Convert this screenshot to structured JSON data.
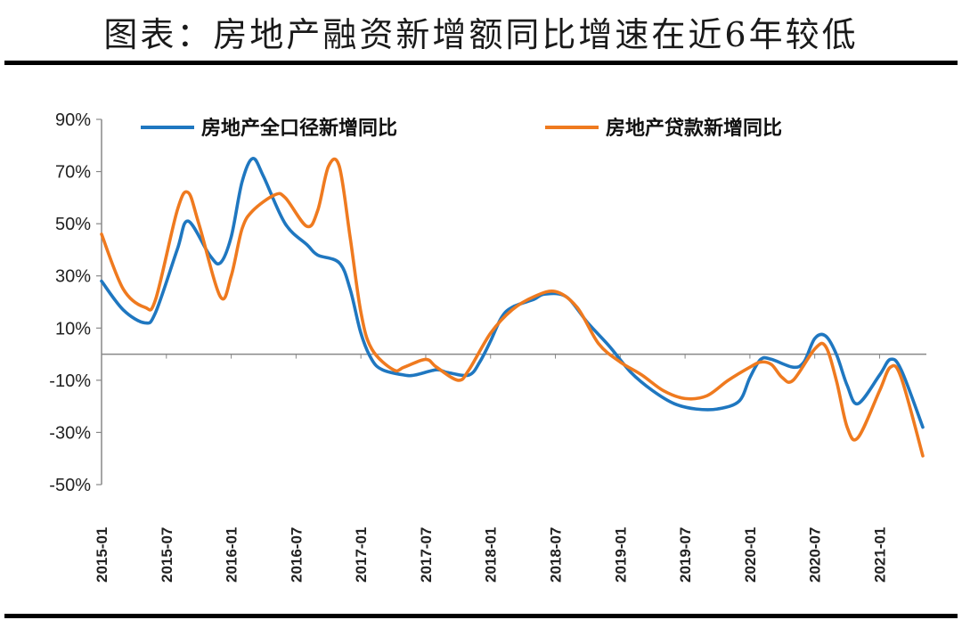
{
  "header": {
    "title": "图表：房地产融资新增额同比增速在近6年较低"
  },
  "chart_data": {
    "type": "line",
    "title": "图表：房地产融资新增额同比增速在近6年较低",
    "xlabel": "",
    "ylabel": "",
    "ylim": [
      -50,
      90
    ],
    "y_ticks": [
      "90%",
      "70%",
      "50%",
      "30%",
      "10%",
      "-10%",
      "-30%",
      "-50%"
    ],
    "y_tick_values": [
      90,
      70,
      50,
      30,
      10,
      -10,
      -30,
      -50
    ],
    "x_ticks": [
      "2015-01",
      "2015-07",
      "2016-01",
      "2016-07",
      "2017-01",
      "2017-07",
      "2018-01",
      "2018-07",
      "2019-01",
      "2019-07",
      "2020-01",
      "2020-07",
      "2021-01"
    ],
    "legend_position": "top",
    "grid": false,
    "series": [
      {
        "name": "房地产全口径新增同比",
        "color": "#1f77c0",
        "points": [
          [
            "2015-01",
            28
          ],
          [
            "2015-03",
            17
          ],
          [
            "2015-05",
            12
          ],
          [
            "2015-06",
            16
          ],
          [
            "2015-08",
            40
          ],
          [
            "2015-09",
            51
          ],
          [
            "2015-11",
            38
          ],
          [
            "2015-12",
            35
          ],
          [
            "2016-01",
            45
          ],
          [
            "2016-02",
            66
          ],
          [
            "2016-03",
            75
          ],
          [
            "2016-04",
            68
          ],
          [
            "2016-06",
            50
          ],
          [
            "2016-08",
            42
          ],
          [
            "2016-09",
            38
          ],
          [
            "2016-11",
            35
          ],
          [
            "2016-12",
            25
          ],
          [
            "2017-01",
            8
          ],
          [
            "2017-02",
            -2
          ],
          [
            "2017-03",
            -6
          ],
          [
            "2017-05",
            -8
          ],
          [
            "2017-06",
            -8
          ],
          [
            "2017-08",
            -6
          ],
          [
            "2017-09",
            -7
          ],
          [
            "2017-11",
            -8
          ],
          [
            "2017-12",
            -3
          ],
          [
            "2018-01",
            5
          ],
          [
            "2018-02",
            14
          ],
          [
            "2018-03",
            18
          ],
          [
            "2018-05",
            21
          ],
          [
            "2018-06",
            23
          ],
          [
            "2018-08",
            22
          ],
          [
            "2018-10",
            12
          ],
          [
            "2018-12",
            3
          ],
          [
            "2019-02",
            -7
          ],
          [
            "2019-04",
            -14
          ],
          [
            "2019-06",
            -19
          ],
          [
            "2019-08",
            -21
          ],
          [
            "2019-10",
            -21
          ],
          [
            "2019-12",
            -18
          ],
          [
            "2020-01",
            -9
          ],
          [
            "2020-02",
            -2
          ],
          [
            "2020-03",
            -2
          ],
          [
            "2020-05",
            -5
          ],
          [
            "2020-06",
            -3
          ],
          [
            "2020-07",
            6
          ],
          [
            "2020-08",
            7
          ],
          [
            "2020-09",
            0
          ],
          [
            "2020-10",
            -12
          ],
          [
            "2020-11",
            -19
          ],
          [
            "2021-01",
            -8
          ],
          [
            "2021-02",
            -2
          ],
          [
            "2021-03",
            -6
          ],
          [
            "2021-05",
            -28
          ]
        ]
      },
      {
        "name": "房地产贷款新增同比",
        "color": "#ef7a1f",
        "points": [
          [
            "2015-01",
            46
          ],
          [
            "2015-03",
            25
          ],
          [
            "2015-05",
            18
          ],
          [
            "2015-06",
            21
          ],
          [
            "2015-08",
            55
          ],
          [
            "2015-09",
            62
          ],
          [
            "2015-10",
            50
          ],
          [
            "2015-12",
            22
          ],
          [
            "2016-01",
            30
          ],
          [
            "2016-02",
            48
          ],
          [
            "2016-03",
            55
          ],
          [
            "2016-05",
            61
          ],
          [
            "2016-06",
            60
          ],
          [
            "2016-08",
            49
          ],
          [
            "2016-09",
            55
          ],
          [
            "2016-10",
            72
          ],
          [
            "2016-11",
            72
          ],
          [
            "2016-12",
            45
          ],
          [
            "2017-01",
            16
          ],
          [
            "2017-02",
            2
          ],
          [
            "2017-04",
            -6
          ],
          [
            "2017-05",
            -5
          ],
          [
            "2017-07",
            -2
          ],
          [
            "2017-08",
            -5
          ],
          [
            "2017-10",
            -10
          ],
          [
            "2017-11",
            -6
          ],
          [
            "2018-01",
            8
          ],
          [
            "2018-03",
            17
          ],
          [
            "2018-05",
            22
          ],
          [
            "2018-07",
            24
          ],
          [
            "2018-09",
            18
          ],
          [
            "2018-11",
            4
          ],
          [
            "2019-01",
            -3
          ],
          [
            "2019-03",
            -8
          ],
          [
            "2019-05",
            -14
          ],
          [
            "2019-07",
            -17
          ],
          [
            "2019-09",
            -16
          ],
          [
            "2019-11",
            -10
          ],
          [
            "2020-01",
            -5
          ],
          [
            "2020-02",
            -3
          ],
          [
            "2020-03",
            -4
          ],
          [
            "2020-04",
            -9
          ],
          [
            "2020-05",
            -10
          ],
          [
            "2020-07",
            2
          ],
          [
            "2020-08",
            3
          ],
          [
            "2020-09",
            -10
          ],
          [
            "2020-10",
            -28
          ],
          [
            "2020-11",
            -32
          ],
          [
            "2021-01",
            -14
          ],
          [
            "2021-02",
            -5
          ],
          [
            "2021-03",
            -9
          ],
          [
            "2021-05",
            -39
          ]
        ]
      }
    ]
  }
}
